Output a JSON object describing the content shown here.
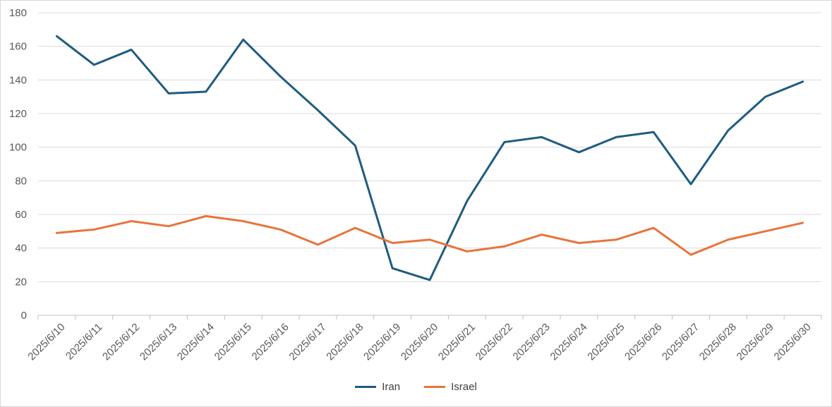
{
  "chart_data": {
    "type": "line",
    "title": "",
    "xlabel": "",
    "ylabel": "",
    "ylim": [
      0,
      180
    ],
    "yticks": [
      0,
      20,
      40,
      60,
      80,
      100,
      120,
      140,
      160,
      180
    ],
    "grid": true,
    "legend_position": "bottom",
    "categories": [
      "2025/6/10",
      "2025/6/11",
      "2025/6/12",
      "2025/6/13",
      "2025/6/14",
      "2025/6/15",
      "2025/6/16",
      "2025/6/17",
      "2025/6/18",
      "2025/6/19",
      "2025/6/20",
      "2025/6/21",
      "2025/6/22",
      "2025/6/23",
      "2025/6/24",
      "2025/6/25",
      "2025/6/26",
      "2025/6/27",
      "2025/6/28",
      "2025/6/29",
      "2025/6/30"
    ],
    "series": [
      {
        "name": "Iran",
        "color": "#1f5c80",
        "values": [
          166,
          149,
          158,
          132,
          133,
          164,
          142,
          122,
          101,
          28,
          21,
          68,
          103,
          106,
          97,
          106,
          109,
          78,
          110,
          130,
          139
        ]
      },
      {
        "name": "Israel",
        "color": "#e8743b",
        "values": [
          49,
          51,
          56,
          53,
          59,
          56,
          51,
          42,
          52,
          43,
          45,
          38,
          41,
          48,
          43,
          45,
          52,
          36,
          45,
          50,
          55
        ]
      }
    ]
  }
}
